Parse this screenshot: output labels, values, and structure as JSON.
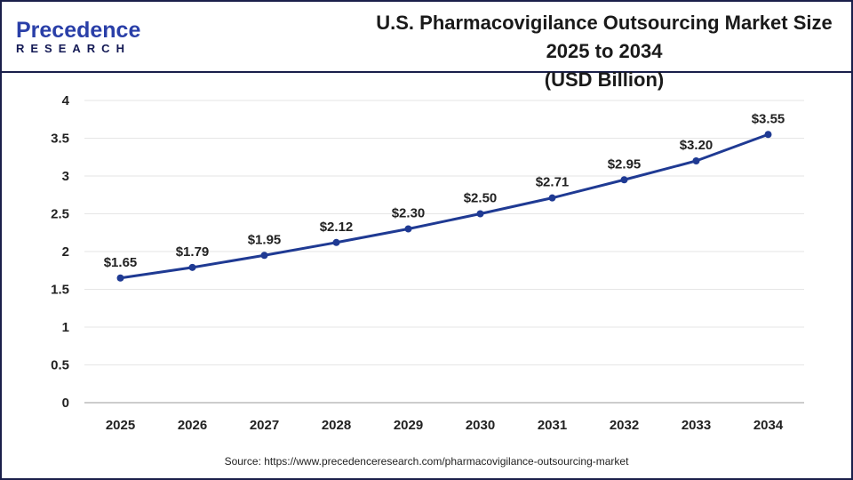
{
  "logo": {
    "line1": "Precedence",
    "line2": "RESEARCH"
  },
  "chart_data": {
    "type": "line",
    "title": "U.S. Pharmacovigilance Outsourcing Market Size 2025 to 2034 (USD Billion)",
    "title_line1": "U.S. Pharmacovigilance Outsourcing Market Size 2025 to 2034",
    "title_line2": "(USD Billion)",
    "xlabel": "",
    "ylabel": "",
    "categories": [
      "2025",
      "2026",
      "2027",
      "2028",
      "2029",
      "2030",
      "2031",
      "2032",
      "2033",
      "2034"
    ],
    "values": [
      1.65,
      1.79,
      1.95,
      2.12,
      2.3,
      2.5,
      2.71,
      2.95,
      3.2,
      3.55
    ],
    "data_labels": [
      "$1.65",
      "$1.79",
      "$1.95",
      "$2.12",
      "$2.30",
      "$2.50",
      "$2.71",
      "$2.95",
      "$3.20",
      "$3.55"
    ],
    "yticks": [
      "0",
      "0.5",
      "1",
      "1.5",
      "2",
      "2.5",
      "3",
      "3.5",
      "4"
    ],
    "ylim": [
      0,
      4
    ],
    "grid": "horizontal",
    "line_color": "#1f3a93"
  },
  "source": "Source: https://www.precedenceresearch.com/pharmacovigilance-outsourcing-market"
}
